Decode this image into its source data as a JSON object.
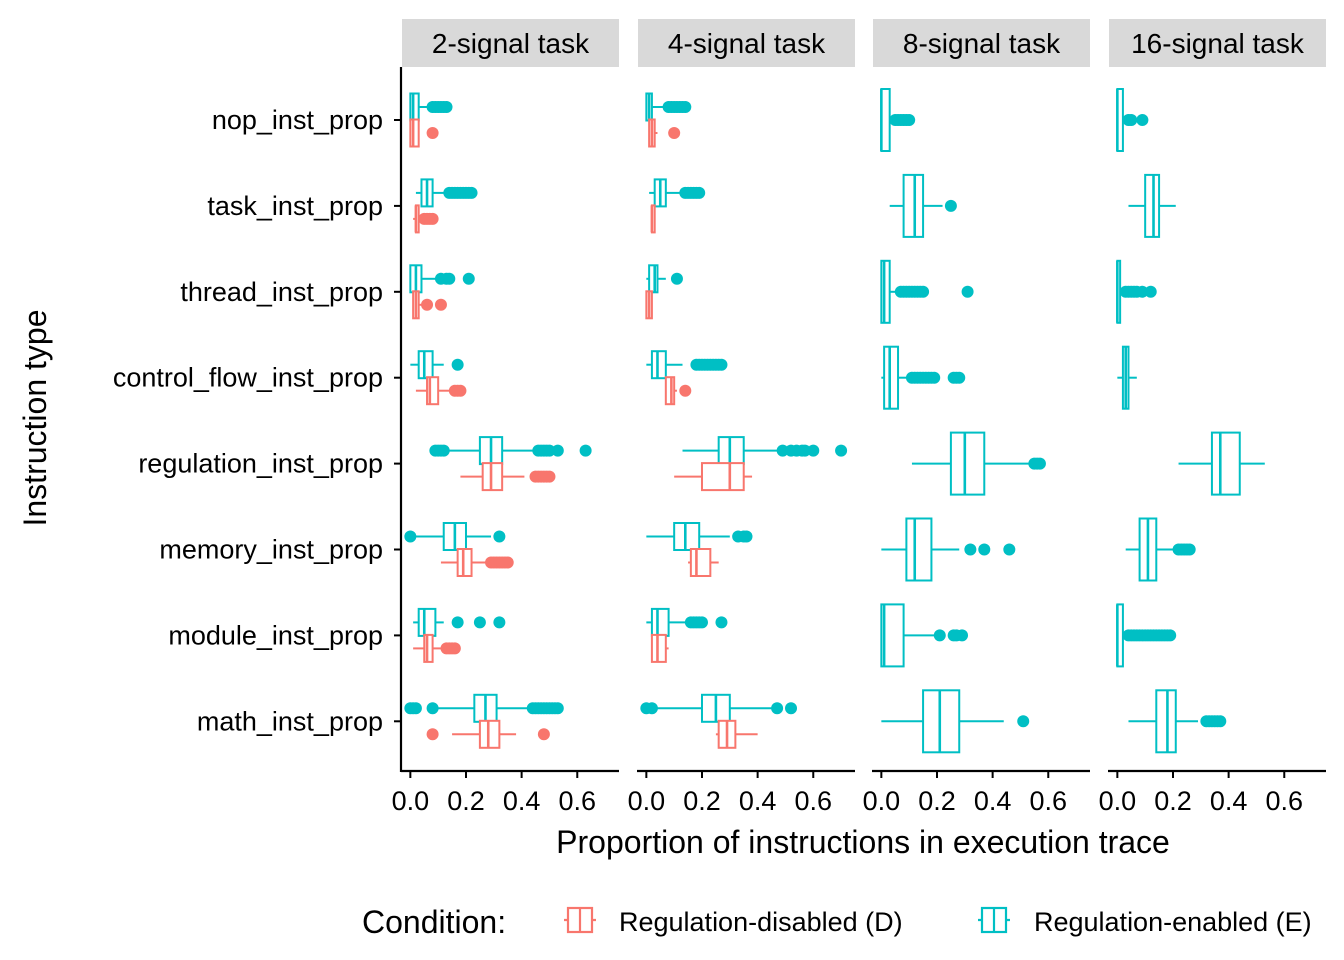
{
  "chart_data": {
    "type": "boxplot",
    "orientation": "horizontal",
    "xlabel": "Proportion of instructions in execution trace",
    "ylabel": "Instruction type",
    "xlim": [
      -0.03,
      0.75
    ],
    "xticks": [
      "0.0",
      "0.2",
      "0.4",
      "0.6"
    ],
    "grid": false,
    "legend_position": "bottom",
    "legend": {
      "title": "Condition:",
      "entries": [
        {
          "key": "D",
          "label": "Regulation-disabled (D)",
          "color": "#F8766D"
        },
        {
          "key": "E",
          "label": "Regulation-enabled (E)",
          "color": "#00BFC4"
        }
      ]
    },
    "categories": [
      "nop_inst_prop",
      "task_inst_prop",
      "thread_inst_prop",
      "control_flow_inst_prop",
      "regulation_inst_prop",
      "memory_inst_prop",
      "module_inst_prop",
      "math_inst_prop"
    ],
    "panels": [
      {
        "title": "2-signal task",
        "boxes": [
          {
            "cat": 0,
            "cond": "E",
            "wmin": 0.0,
            "q1": 0.0,
            "med": 0.01,
            "q3": 0.03,
            "wmax": 0.07,
            "outliers": [
              0.08,
              0.09,
              0.1,
              0.11,
              0.12,
              0.13
            ]
          },
          {
            "cat": 0,
            "cond": "D",
            "wmin": 0.0,
            "q1": 0.0,
            "med": 0.01,
            "q3": 0.03,
            "wmax": 0.03,
            "outliers": [
              0.08
            ]
          },
          {
            "cat": 1,
            "cond": "E",
            "wmin": 0.02,
            "q1": 0.04,
            "med": 0.06,
            "q3": 0.08,
            "wmax": 0.13,
            "outliers": [
              0.14,
              0.15,
              0.16,
              0.17,
              0.18,
              0.19,
              0.2,
              0.21,
              0.22
            ]
          },
          {
            "cat": 1,
            "cond": "D",
            "wmin": 0.01,
            "q1": 0.02,
            "med": 0.02,
            "q3": 0.03,
            "wmax": 0.04,
            "outliers": [
              0.05,
              0.06,
              0.07,
              0.08
            ]
          },
          {
            "cat": 2,
            "cond": "E",
            "wmin": 0.0,
            "q1": 0.0,
            "med": 0.02,
            "q3": 0.04,
            "wmax": 0.09,
            "outliers": [
              0.11,
              0.13,
              0.14,
              0.21
            ]
          },
          {
            "cat": 2,
            "cond": "D",
            "wmin": 0.01,
            "q1": 0.01,
            "med": 0.02,
            "q3": 0.03,
            "wmax": 0.05,
            "outliers": [
              0.06,
              0.11
            ]
          },
          {
            "cat": 3,
            "cond": "E",
            "wmin": 0.0,
            "q1": 0.03,
            "med": 0.05,
            "q3": 0.08,
            "wmax": 0.12,
            "outliers": [
              0.17
            ]
          },
          {
            "cat": 3,
            "cond": "D",
            "wmin": 0.02,
            "q1": 0.06,
            "med": 0.07,
            "q3": 0.1,
            "wmax": 0.14,
            "outliers": [
              0.16,
              0.17,
              0.18
            ]
          },
          {
            "cat": 4,
            "cond": "E",
            "wmin": 0.13,
            "q1": 0.25,
            "med": 0.29,
            "q3": 0.33,
            "wmax": 0.44,
            "outliers": [
              0.09,
              0.1,
              0.11,
              0.12,
              0.46,
              0.47,
              0.48,
              0.49,
              0.5,
              0.53,
              0.63
            ]
          },
          {
            "cat": 4,
            "cond": "D",
            "wmin": 0.18,
            "q1": 0.26,
            "med": 0.29,
            "q3": 0.33,
            "wmax": 0.41,
            "outliers": [
              0.45,
              0.46,
              0.47,
              0.48,
              0.49,
              0.5
            ]
          },
          {
            "cat": 5,
            "cond": "E",
            "wmin": 0.01,
            "q1": 0.12,
            "med": 0.16,
            "q3": 0.2,
            "wmax": 0.29,
            "outliers": [
              0.0,
              0.32
            ]
          },
          {
            "cat": 5,
            "cond": "D",
            "wmin": 0.11,
            "q1": 0.17,
            "med": 0.19,
            "q3": 0.22,
            "wmax": 0.27,
            "outliers": [
              0.29,
              0.3,
              0.31,
              0.32,
              0.33,
              0.34,
              0.35
            ]
          },
          {
            "cat": 6,
            "cond": "E",
            "wmin": 0.01,
            "q1": 0.03,
            "med": 0.05,
            "q3": 0.09,
            "wmax": 0.12,
            "outliers": [
              0.17,
              0.25,
              0.32
            ]
          },
          {
            "cat": 6,
            "cond": "D",
            "wmin": 0.01,
            "q1": 0.05,
            "med": 0.06,
            "q3": 0.08,
            "wmax": 0.12,
            "outliers": [
              0.13,
              0.14,
              0.15,
              0.16
            ]
          },
          {
            "cat": 7,
            "cond": "E",
            "wmin": 0.08,
            "q1": 0.23,
            "med": 0.27,
            "q3": 0.31,
            "wmax": 0.43,
            "outliers": [
              0.0,
              0.01,
              0.02,
              0.08,
              0.44,
              0.45,
              0.46,
              0.47,
              0.48,
              0.49,
              0.5,
              0.51,
              0.52,
              0.53
            ]
          },
          {
            "cat": 7,
            "cond": "D",
            "wmin": 0.15,
            "q1": 0.25,
            "med": 0.28,
            "q3": 0.32,
            "wmax": 0.38,
            "outliers": [
              0.08,
              0.48
            ]
          }
        ]
      },
      {
        "title": "4-signal task",
        "boxes": [
          {
            "cat": 0,
            "cond": "E",
            "wmin": 0.0,
            "q1": 0.0,
            "med": 0.01,
            "q3": 0.02,
            "wmax": 0.07,
            "outliers": [
              0.08,
              0.09,
              0.1,
              0.11,
              0.12,
              0.13,
              0.14
            ]
          },
          {
            "cat": 0,
            "cond": "D",
            "wmin": 0.01,
            "q1": 0.01,
            "med": 0.02,
            "q3": 0.03,
            "wmax": 0.04,
            "outliers": [
              0.1
            ]
          },
          {
            "cat": 1,
            "cond": "E",
            "wmin": 0.01,
            "q1": 0.03,
            "med": 0.05,
            "q3": 0.07,
            "wmax": 0.12,
            "outliers": [
              0.14,
              0.15,
              0.16,
              0.17,
              0.18,
              0.19
            ]
          },
          {
            "cat": 1,
            "cond": "D",
            "wmin": 0.02,
            "q1": 0.02,
            "med": 0.02,
            "q3": 0.03,
            "wmax": 0.03,
            "outliers": []
          },
          {
            "cat": 2,
            "cond": "E",
            "wmin": 0.0,
            "q1": 0.01,
            "med": 0.03,
            "q3": 0.04,
            "wmax": 0.07,
            "outliers": [
              0.11
            ]
          },
          {
            "cat": 2,
            "cond": "D",
            "wmin": 0.0,
            "q1": 0.0,
            "med": 0.01,
            "q3": 0.02,
            "wmax": 0.02,
            "outliers": []
          },
          {
            "cat": 3,
            "cond": "E",
            "wmin": 0.0,
            "q1": 0.02,
            "med": 0.04,
            "q3": 0.07,
            "wmax": 0.13,
            "outliers": [
              0.18,
              0.19,
              0.2,
              0.21,
              0.22,
              0.23,
              0.24,
              0.25,
              0.26,
              0.27
            ]
          },
          {
            "cat": 3,
            "cond": "D",
            "wmin": 0.07,
            "q1": 0.07,
            "med": 0.09,
            "q3": 0.1,
            "wmax": 0.11,
            "outliers": [
              0.14
            ]
          },
          {
            "cat": 4,
            "cond": "E",
            "wmin": 0.13,
            "q1": 0.26,
            "med": 0.3,
            "q3": 0.35,
            "wmax": 0.48,
            "outliers": [
              0.49,
              0.52,
              0.54,
              0.56,
              0.57,
              0.6,
              0.7
            ]
          },
          {
            "cat": 4,
            "cond": "D",
            "wmin": 0.1,
            "q1": 0.2,
            "med": 0.3,
            "q3": 0.35,
            "wmax": 0.38,
            "outliers": []
          },
          {
            "cat": 5,
            "cond": "E",
            "wmin": 0.0,
            "q1": 0.1,
            "med": 0.14,
            "q3": 0.19,
            "wmax": 0.3,
            "outliers": [
              0.33,
              0.35,
              0.36
            ]
          },
          {
            "cat": 5,
            "cond": "D",
            "wmin": 0.15,
            "q1": 0.16,
            "med": 0.18,
            "q3": 0.23,
            "wmax": 0.26,
            "outliers": []
          },
          {
            "cat": 6,
            "cond": "E",
            "wmin": 0.0,
            "q1": 0.02,
            "med": 0.04,
            "q3": 0.08,
            "wmax": 0.14,
            "outliers": [
              0.16,
              0.17,
              0.18,
              0.19,
              0.2,
              0.27
            ]
          },
          {
            "cat": 6,
            "cond": "D",
            "wmin": 0.02,
            "q1": 0.02,
            "med": 0.04,
            "q3": 0.07,
            "wmax": 0.08,
            "outliers": []
          },
          {
            "cat": 7,
            "cond": "E",
            "wmin": 0.02,
            "q1": 0.2,
            "med": 0.25,
            "q3": 0.3,
            "wmax": 0.45,
            "outliers": [
              0.0,
              0.02,
              0.47,
              0.52
            ]
          },
          {
            "cat": 7,
            "cond": "D",
            "wmin": 0.25,
            "q1": 0.26,
            "med": 0.29,
            "q3": 0.32,
            "wmax": 0.4,
            "outliers": []
          }
        ]
      },
      {
        "title": "8-signal task",
        "boxes": [
          {
            "cat": 0,
            "cond": "E",
            "wmin": 0.0,
            "q1": 0.0,
            "med": 0.0,
            "q3": 0.03,
            "wmax": 0.04,
            "outliers": [
              0.05,
              0.06,
              0.07,
              0.08,
              0.09,
              0.1
            ]
          },
          {
            "cat": 1,
            "cond": "E",
            "wmin": 0.03,
            "q1": 0.08,
            "med": 0.12,
            "q3": 0.15,
            "wmax": 0.22,
            "outliers": [
              0.25
            ]
          },
          {
            "cat": 2,
            "cond": "E",
            "wmin": 0.0,
            "q1": 0.0,
            "med": 0.01,
            "q3": 0.03,
            "wmax": 0.05,
            "outliers": [
              0.07,
              0.08,
              0.09,
              0.1,
              0.11,
              0.12,
              0.13,
              0.14,
              0.15,
              0.31
            ]
          },
          {
            "cat": 3,
            "cond": "E",
            "wmin": 0.0,
            "q1": 0.01,
            "med": 0.03,
            "q3": 0.06,
            "wmax": 0.1,
            "outliers": [
              0.11,
              0.12,
              0.13,
              0.14,
              0.15,
              0.16,
              0.17,
              0.18,
              0.19,
              0.26,
              0.27,
              0.28
            ]
          },
          {
            "cat": 4,
            "cond": "E",
            "wmin": 0.11,
            "q1": 0.25,
            "med": 0.3,
            "q3": 0.37,
            "wmax": 0.54,
            "outliers": [
              0.55,
              0.56,
              0.57
            ]
          },
          {
            "cat": 5,
            "cond": "E",
            "wmin": 0.0,
            "q1": 0.09,
            "med": 0.12,
            "q3": 0.18,
            "wmax": 0.28,
            "outliers": [
              0.32,
              0.37,
              0.46
            ]
          },
          {
            "cat": 6,
            "cond": "E",
            "wmin": 0.0,
            "q1": 0.0,
            "med": 0.01,
            "q3": 0.08,
            "wmax": 0.2,
            "outliers": [
              0.21,
              0.26,
              0.27,
              0.29
            ]
          },
          {
            "cat": 7,
            "cond": "E",
            "wmin": 0.0,
            "q1": 0.15,
            "med": 0.21,
            "q3": 0.28,
            "wmax": 0.44,
            "outliers": [
              0.51
            ]
          }
        ]
      },
      {
        "title": "16-signal task",
        "boxes": [
          {
            "cat": 0,
            "cond": "E",
            "wmin": 0.0,
            "q1": 0.0,
            "med": 0.0,
            "q3": 0.02,
            "wmax": 0.03,
            "outliers": [
              0.04,
              0.05,
              0.09
            ]
          },
          {
            "cat": 1,
            "cond": "E",
            "wmin": 0.04,
            "q1": 0.1,
            "med": 0.13,
            "q3": 0.15,
            "wmax": 0.21,
            "outliers": []
          },
          {
            "cat": 2,
            "cond": "E",
            "wmin": 0.0,
            "q1": 0.0,
            "med": 0.0,
            "q3": 0.01,
            "wmax": 0.02,
            "outliers": [
              0.03,
              0.04,
              0.05,
              0.06,
              0.07,
              0.09,
              0.12
            ]
          },
          {
            "cat": 3,
            "cond": "E",
            "wmin": 0.0,
            "q1": 0.02,
            "med": 0.03,
            "q3": 0.04,
            "wmax": 0.07,
            "outliers": []
          },
          {
            "cat": 4,
            "cond": "E",
            "wmin": 0.22,
            "q1": 0.34,
            "med": 0.37,
            "q3": 0.44,
            "wmax": 0.53,
            "outliers": []
          },
          {
            "cat": 5,
            "cond": "E",
            "wmin": 0.03,
            "q1": 0.08,
            "med": 0.11,
            "q3": 0.14,
            "wmax": 0.21,
            "outliers": [
              0.22,
              0.23,
              0.24,
              0.25,
              0.26
            ]
          },
          {
            "cat": 6,
            "cond": "E",
            "wmin": 0.0,
            "q1": 0.0,
            "med": 0.0,
            "q3": 0.02,
            "wmax": 0.03,
            "outliers": [
              0.04,
              0.05,
              0.06,
              0.07,
              0.08,
              0.09,
              0.1,
              0.11,
              0.12,
              0.13,
              0.14,
              0.15,
              0.16,
              0.17,
              0.18,
              0.19
            ]
          },
          {
            "cat": 7,
            "cond": "E",
            "wmin": 0.04,
            "q1": 0.14,
            "med": 0.18,
            "q3": 0.21,
            "wmax": 0.29,
            "outliers": [
              0.32,
              0.33,
              0.34,
              0.35,
              0.36,
              0.37
            ]
          }
        ]
      }
    ]
  }
}
